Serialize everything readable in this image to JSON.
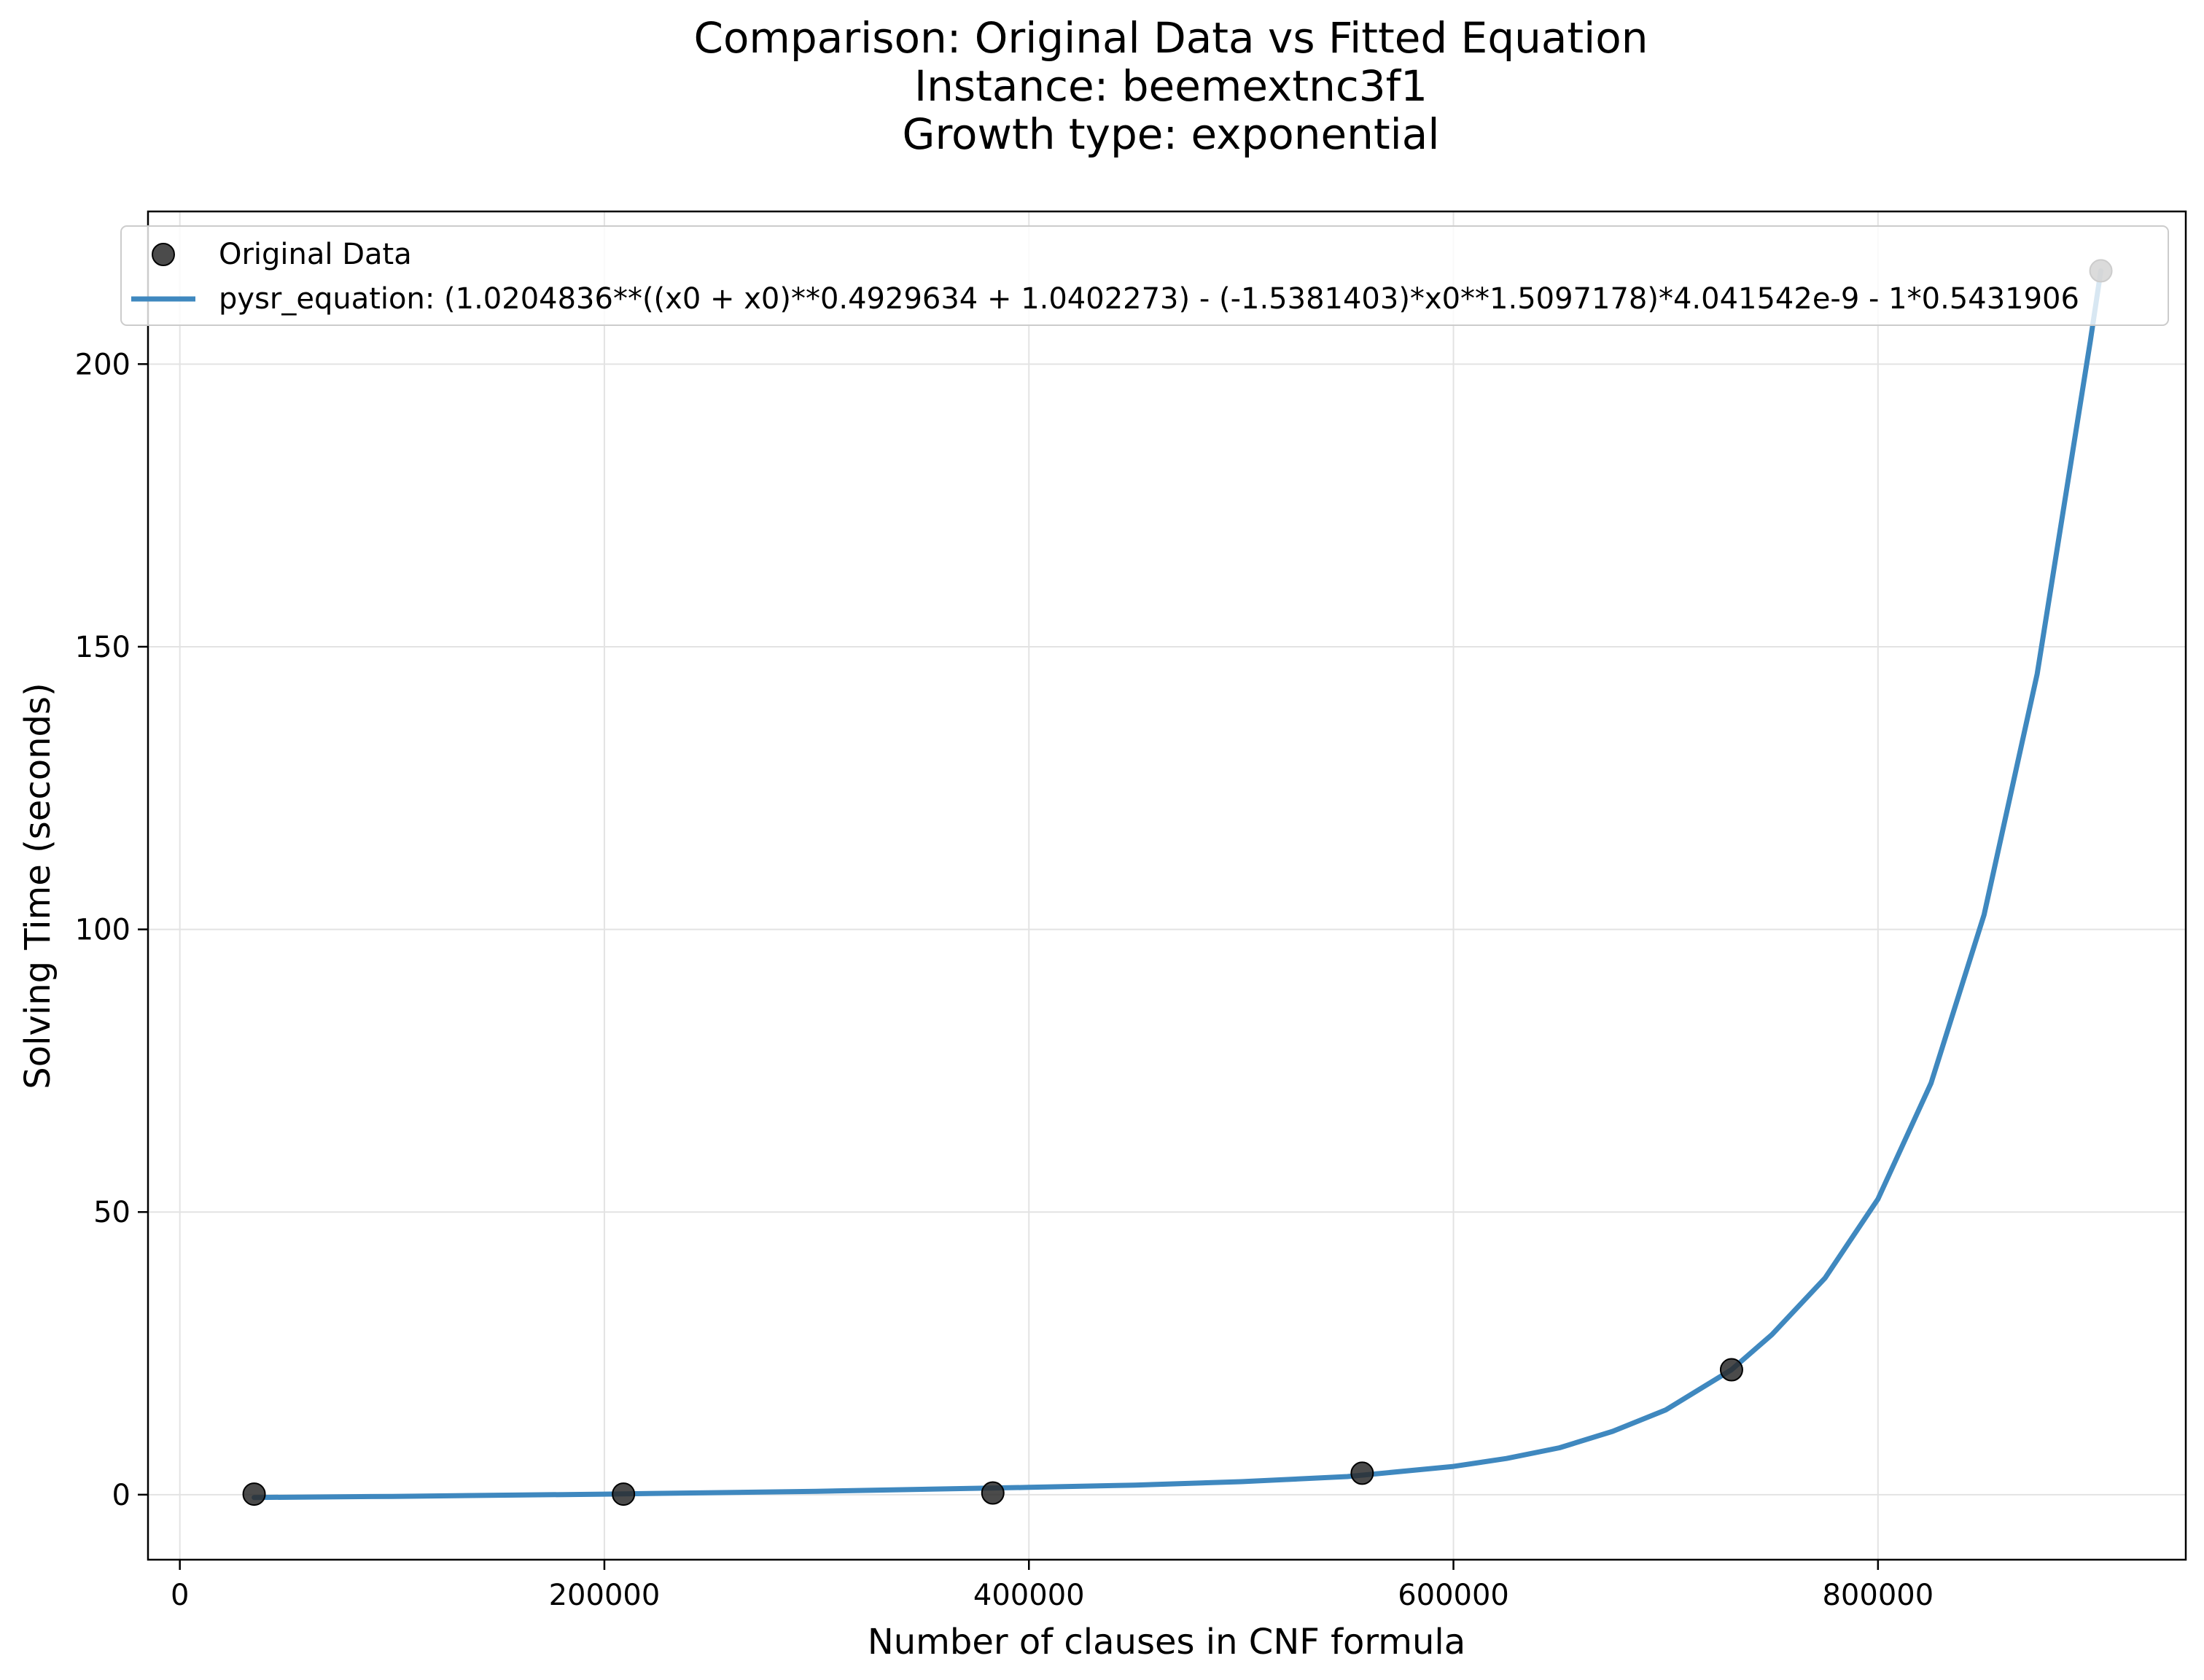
{
  "chart_data": {
    "type": "scatter",
    "title_lines": [
      "Comparison: Original Data vs Fitted Equation",
      "Instance: beemextnc3f1",
      "Growth type: exponential"
    ],
    "xlabel": "Number of clauses in CNF formula",
    "ylabel": "Solving Time (seconds)",
    "xlim": [
      -15000,
      945000
    ],
    "ylim": [
      -11.5,
      227
    ],
    "x_ticks": [
      0,
      200000,
      400000,
      600000,
      800000
    ],
    "y_ticks": [
      0,
      50,
      100,
      150,
      200
    ],
    "grid": true,
    "legend_placement": "top-left",
    "series": [
      {
        "name": "Original Data",
        "kind": "scatter",
        "color": "#2b2b2b",
        "points": [
          {
            "x": 35000,
            "y": 0.1
          },
          {
            "x": 209000,
            "y": 0.1
          },
          {
            "x": 383000,
            "y": 0.3
          },
          {
            "x": 557000,
            "y": 3.8
          },
          {
            "x": 731000,
            "y": 22.1
          },
          {
            "x": 905000,
            "y": 216.5
          }
        ]
      },
      {
        "name": "pysr_equation: (1.0204836**((x0 + x0)**0.4929634 + 1.0402273) - (-1.5381403)*x0**1.5097178)*4.041542e-9 - 1*0.5431906",
        "kind": "line",
        "color": "#3f88bf",
        "points": [
          {
            "x": 35000,
            "y": -0.5
          },
          {
            "x": 100000,
            "y": -0.3
          },
          {
            "x": 200000,
            "y": 0.1
          },
          {
            "x": 300000,
            "y": 0.6
          },
          {
            "x": 400000,
            "y": 1.3
          },
          {
            "x": 450000,
            "y": 1.7
          },
          {
            "x": 500000,
            "y": 2.3
          },
          {
            "x": 550000,
            "y": 3.2
          },
          {
            "x": 600000,
            "y": 5.0
          },
          {
            "x": 625000,
            "y": 6.4
          },
          {
            "x": 650000,
            "y": 8.3
          },
          {
            "x": 675000,
            "y": 11.2
          },
          {
            "x": 700000,
            "y": 15.0
          },
          {
            "x": 731000,
            "y": 22.1
          },
          {
            "x": 750000,
            "y": 28.3
          },
          {
            "x": 775000,
            "y": 38.3
          },
          {
            "x": 800000,
            "y": 52.3
          },
          {
            "x": 825000,
            "y": 72.8
          },
          {
            "x": 850000,
            "y": 102.6
          },
          {
            "x": 875000,
            "y": 145.2
          },
          {
            "x": 900000,
            "y": 204.0
          },
          {
            "x": 905000,
            "y": 216.5
          }
        ]
      }
    ]
  }
}
